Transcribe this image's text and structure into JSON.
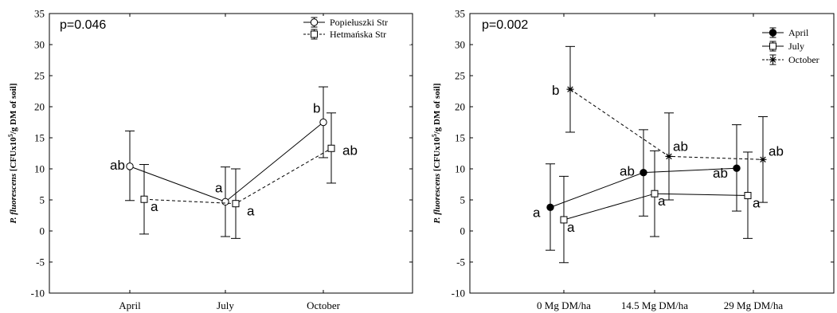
{
  "chart_data": [
    {
      "type": "line",
      "ylabel_italic": "P. fluorescens",
      "ylabel_rest": " [CFUx10",
      "ylabel_sup": "5",
      "ylabel_end": "/g DM of soil]",
      "ylim": [
        -10,
        35
      ],
      "yticks": [
        -10,
        -5,
        0,
        5,
        10,
        15,
        20,
        25,
        30,
        35
      ],
      "categories": [
        "April",
        "July",
        "October"
      ],
      "p_text": "p=0.046",
      "legend_position": "top-right",
      "series": [
        {
          "name": "Popiełuszki Str",
          "marker": "open-circle",
          "dash": "solid",
          "values": [
            10.4,
            4.7,
            17.5
          ],
          "err_low": [
            4.9,
            -0.9,
            11.8
          ],
          "err_high": [
            16.1,
            10.3,
            23.2
          ],
          "labels": [
            "ab",
            "a",
            "b"
          ]
        },
        {
          "name": "Hetmańska Str",
          "marker": "open-square",
          "dash": "dashed",
          "values": [
            5.1,
            4.4,
            13.3
          ],
          "err_low": [
            -0.5,
            -1.2,
            7.7
          ],
          "err_high": [
            10.7,
            10.0,
            19.0
          ],
          "labels": [
            "a",
            "a",
            "ab"
          ]
        }
      ]
    },
    {
      "type": "line",
      "ylabel_italic": "P. fluorescens",
      "ylabel_rest": " [CFUx10",
      "ylabel_sup": "5",
      "ylabel_end": "/g DM of soil]",
      "ylim": [
        -10,
        35
      ],
      "yticks": [
        -10,
        -5,
        0,
        5,
        10,
        15,
        20,
        25,
        30,
        35
      ],
      "categories": [
        "0 Mg DM/ha",
        "14.5 Mg DM/ha",
        "29 Mg DM/ha"
      ],
      "p_text": "p=0.002",
      "legend_position": "top-right",
      "series": [
        {
          "name": "April",
          "marker": "filled-circle",
          "dash": "solid",
          "values": [
            3.8,
            9.4,
            10.1
          ],
          "err_low": [
            -3.1,
            2.4,
            3.2
          ],
          "err_high": [
            10.8,
            16.3,
            17.1
          ],
          "labels": [
            "a",
            "ab",
            "ab"
          ]
        },
        {
          "name": "July",
          "marker": "open-square",
          "dash": "solid",
          "values": [
            1.8,
            6.0,
            5.7
          ],
          "err_low": [
            -5.1,
            -0.9,
            -1.2
          ],
          "err_high": [
            8.8,
            12.9,
            12.7
          ],
          "labels": [
            "a",
            "a",
            "a"
          ]
        },
        {
          "name": "October",
          "marker": "asterisk",
          "dash": "dashed",
          "values": [
            22.8,
            12.0,
            11.5
          ],
          "err_low": [
            15.9,
            5.0,
            4.6
          ],
          "err_high": [
            29.7,
            19.0,
            18.4
          ],
          "labels": [
            "b",
            "ab",
            "ab"
          ]
        }
      ]
    }
  ]
}
